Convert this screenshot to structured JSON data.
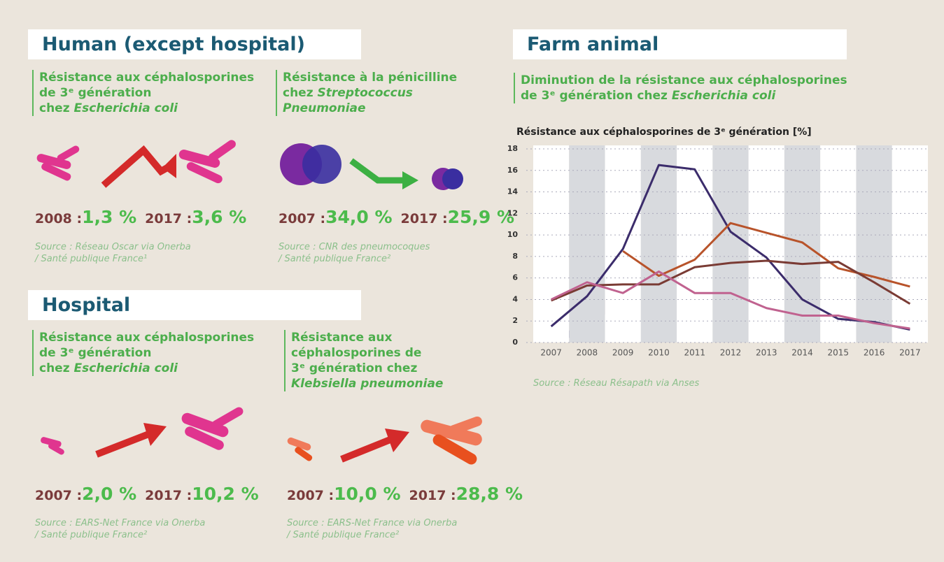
{
  "human": {
    "title": "Human (except hospital)",
    "items": [
      {
        "heading": [
          [
            "Résistance aux céphalosporines"
          ],
          [
            "de 3ᵉ génération"
          ],
          [
            "chez ",
            "Escherichia coli"
          ]
        ],
        "year1": "2008 :",
        "value1": "1,3 %",
        "year2": "2017 :",
        "value2": "3,6 %",
        "source": [
          "Source : Réseau Oscar via Onerba",
          "/ Santé publique France¹"
        ]
      },
      {
        "heading": [
          [
            "Résistance à la pénicilline"
          ],
          [
            "chez ",
            "Streptococcus"
          ],
          [
            "",
            "Pneumoniae"
          ]
        ],
        "year1": "2007 :",
        "value1": "34,0 %",
        "year2": "2017 :",
        "value2": "25,9 %",
        "source": [
          "Source : CNR des pneumocoques",
          "/ Santé publique France²"
        ]
      }
    ]
  },
  "hospital": {
    "title": "Hospital",
    "items": [
      {
        "heading": [
          [
            "Résistance aux céphalosporines"
          ],
          [
            "de 3ᵉ génération"
          ],
          [
            "chez ",
            "Escherichia coli"
          ]
        ],
        "year1": "2007 :",
        "value1": "2,0 %",
        "year2": "2017 :",
        "value2": "10,2 %",
        "source": [
          "Source : EARS-Net France via Onerba",
          "/ Santé publique France²"
        ]
      },
      {
        "heading": [
          [
            "Résistance aux"
          ],
          [
            "céphalosporines de"
          ],
          [
            "3ᵉ génération chez"
          ],
          [
            "",
            "Klebsiella pneumoniae"
          ]
        ],
        "year1": "2007 :",
        "value1": "10,0 %",
        "year2": "2017 :",
        "value2": "28,8 %",
        "source": [
          "Source : EARS-Net France via Onerba",
          "/ Santé publique France²"
        ]
      }
    ]
  },
  "farm": {
    "title": "Farm animal",
    "heading": [
      [
        "Diminution de la résistance aux céphalosporines"
      ],
      [
        "de 3ᵉ génération chez ",
        "Escherichia coli"
      ]
    ],
    "source": "Source : Réseau Résapath via Anses"
  },
  "chart_data": {
    "type": "line",
    "title": "Résistance aux céphalosporines de 3ᵉ génération [%]",
    "categories": [
      "2007",
      "2008",
      "2009",
      "2010",
      "2011",
      "2012",
      "2013",
      "2014",
      "2015",
      "2016",
      "2017"
    ],
    "series": [
      {
        "color": "#3b2c6b",
        "values": [
          1.5,
          4.3,
          8.7,
          16.5,
          16.1,
          10.3,
          7.9,
          4.0,
          2.2,
          1.9,
          1.2
        ]
      },
      {
        "color": "#b8532a",
        "values": [
          null,
          null,
          8.5,
          6.2,
          7.7,
          11.1,
          10.2,
          9.3,
          6.9,
          6.1,
          5.2
        ]
      },
      {
        "color": "#7a3b34",
        "values": [
          3.9,
          5.3,
          5.4,
          5.4,
          7.0,
          7.4,
          7.6,
          7.3,
          7.5,
          5.6,
          3.6
        ]
      },
      {
        "color": "#c0628f",
        "values": [
          4.0,
          5.6,
          4.6,
          6.6,
          4.6,
          4.6,
          3.2,
          2.5,
          2.5,
          1.8,
          1.3
        ]
      }
    ],
    "ylim": [
      0,
      18
    ],
    "yticks": [
      0,
      2,
      4,
      6,
      8,
      10,
      12,
      14,
      16,
      18
    ],
    "grid": true
  }
}
